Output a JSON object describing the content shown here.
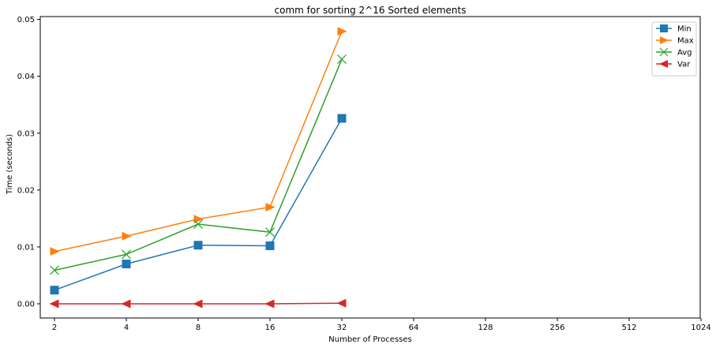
{
  "chart_data": {
    "type": "line",
    "title": "comm for sorting 2^16 Sorted elements",
    "xlabel": "Number of Processes",
    "ylabel": "Time (seconds)",
    "x_scale": "log2",
    "x_ticks": [
      "2",
      "4",
      "8",
      "16",
      "32",
      "64",
      "128",
      "256",
      "512",
      "1024"
    ],
    "x": [
      2,
      4,
      8,
      16,
      32
    ],
    "ylim": [
      -0.0025,
      0.0505
    ],
    "y_ticks": [
      "0.00",
      "0.01",
      "0.02",
      "0.03",
      "0.04",
      "0.05"
    ],
    "grid": false,
    "legend": "top-right",
    "series": [
      {
        "name": "Min",
        "marker": "square",
        "color": "#1f77b4",
        "values": [
          0.0024,
          0.007,
          0.0103,
          0.0102,
          0.0326
        ]
      },
      {
        "name": "Max",
        "marker": "triangle-right",
        "color": "#ff7f0e",
        "values": [
          0.0092,
          0.0119,
          0.0149,
          0.017,
          0.0479
        ]
      },
      {
        "name": "Avg",
        "marker": "x",
        "color": "#2ca02c",
        "values": [
          0.0059,
          0.0087,
          0.014,
          0.0126,
          0.043
        ]
      },
      {
        "name": "Var",
        "marker": "triangle-left",
        "color": "#d62728",
        "values": [
          0.0,
          0.0,
          0.0,
          0.0,
          0.0001
        ]
      }
    ]
  }
}
